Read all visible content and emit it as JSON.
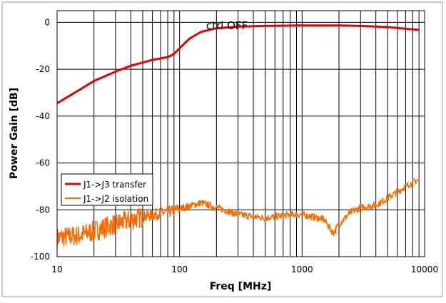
{
  "chart_data": {
    "type": "line",
    "annotation": "ctrl OFF",
    "xlabel": "Freq [MHz]",
    "ylabel": "Power Gain [dB]",
    "xscale": "log",
    "xlim": [
      10,
      10000
    ],
    "ylim": [
      -100,
      5
    ],
    "x_ticks": [
      10,
      100,
      1000,
      10000
    ],
    "x_tick_labels": [
      "10",
      "100",
      "1000",
      "10000"
    ],
    "y_ticks": [
      0,
      -20,
      -40,
      -60,
      -80,
      -100
    ],
    "y_tick_labels": [
      "0",
      "-20",
      "-40",
      "-60",
      "-80",
      "-100"
    ],
    "grid": true,
    "legend_position": "left, below middle",
    "series": [
      {
        "name": "J1->J3 transfer",
        "color": "#e60000",
        "points": [
          [
            10,
            -34.5
          ],
          [
            15,
            -29
          ],
          [
            20,
            -25
          ],
          [
            30,
            -21
          ],
          [
            40,
            -18.5
          ],
          [
            60,
            -16
          ],
          [
            80,
            -14.8
          ],
          [
            90,
            -13.5
          ],
          [
            100,
            -11
          ],
          [
            120,
            -7
          ],
          [
            150,
            -4
          ],
          [
            200,
            -2.5
          ],
          [
            300,
            -1.8
          ],
          [
            500,
            -1.5
          ],
          [
            1000,
            -1.3
          ],
          [
            2000,
            -1.3
          ],
          [
            3000,
            -1.5
          ],
          [
            5000,
            -2
          ],
          [
            7000,
            -2.7
          ],
          [
            9000,
            -3.2
          ]
        ]
      },
      {
        "name": "J1->J2 isolation",
        "color": "#ff6a00",
        "noisy": true,
        "points": [
          [
            10,
            -92
          ],
          [
            15,
            -91
          ],
          [
            20,
            -89
          ],
          [
            30,
            -86
          ],
          [
            50,
            -83
          ],
          [
            80,
            -81
          ],
          [
            100,
            -79.5
          ],
          [
            150,
            -77
          ],
          [
            200,
            -79
          ],
          [
            300,
            -82
          ],
          [
            500,
            -83.5
          ],
          [
            800,
            -82
          ],
          [
            1000,
            -82
          ],
          [
            1500,
            -84
          ],
          [
            1800,
            -90
          ],
          [
            2000,
            -86
          ],
          [
            2500,
            -81
          ],
          [
            3000,
            -79
          ],
          [
            4000,
            -78
          ],
          [
            5000,
            -75
          ],
          [
            7000,
            -70
          ],
          [
            9000,
            -67
          ]
        ]
      }
    ]
  }
}
